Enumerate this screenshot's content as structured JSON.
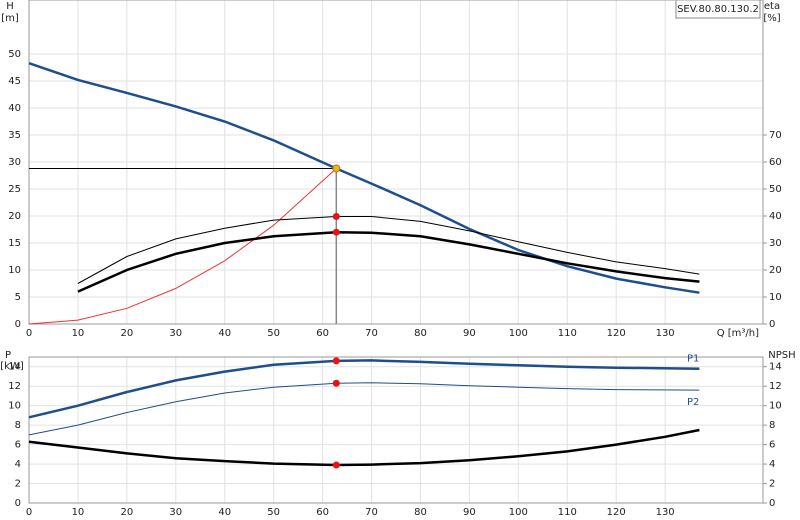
{
  "model": "SEV.80.80.130.2",
  "chart_data": [
    {
      "type": "line",
      "y_label": "H",
      "y_unit": "[m]",
      "y2_label": "eta",
      "y2_unit": "[%]",
      "x_label": "Q [m³/h]",
      "xlim": [
        0,
        150
      ],
      "xticks": [
        0,
        10,
        20,
        30,
        40,
        50,
        60,
        70,
        80,
        90,
        100,
        110,
        120,
        130
      ],
      "ylim": [
        0,
        60
      ],
      "yticks": [
        0,
        5,
        10,
        15,
        20,
        25,
        30,
        35,
        40,
        45,
        50
      ],
      "y2lim": [
        0,
        120
      ],
      "y2ticks": [
        0,
        10,
        20,
        30,
        40,
        50,
        60,
        70
      ],
      "grid": true,
      "series": [
        {
          "color": "#1f4e8c",
          "bold": true,
          "x": [
            0,
            10,
            20,
            30,
            40,
            50,
            62.8,
            70,
            80,
            90,
            100,
            110,
            120,
            130,
            137
          ],
          "values": [
            48.3,
            45.2,
            42.8,
            40.3,
            37.5,
            34,
            28.8,
            26,
            22,
            17.6,
            13.7,
            10.7,
            8.4,
            6.8,
            5.8
          ],
          "marker": {
            "x": 62.8,
            "value": 28.8,
            "color": "#f5b021"
          }
        },
        {
          "color": "#ee3333",
          "bold": false,
          "x": [
            0,
            10,
            20,
            30,
            40,
            50,
            62.8
          ],
          "values": [
            0,
            0.73,
            2.9,
            6.6,
            11.7,
            18.3,
            28.8
          ]
        },
        {
          "color": "#000000",
          "bold": false,
          "axis": "y2",
          "x": [
            10,
            20,
            30,
            40,
            50,
            62.8,
            70,
            80,
            90,
            100,
            110,
            120,
            130,
            137
          ],
          "values": [
            15,
            25,
            31.5,
            35.5,
            38.5,
            39.8,
            39.8,
            38,
            34.5,
            30.5,
            26.5,
            23,
            20.5,
            18.5
          ],
          "marker": {
            "x": 62.8,
            "value": 39.8,
            "color": "#ee1111"
          }
        },
        {
          "color": "#000000",
          "bold": true,
          "axis": "y2",
          "x": [
            10,
            20,
            30,
            40,
            50,
            62.8,
            70,
            80,
            90,
            100,
            110,
            120,
            130,
            137
          ],
          "values": [
            12,
            20,
            26,
            30,
            32.5,
            34,
            33.8,
            32.5,
            29.5,
            26,
            22.5,
            19.5,
            17,
            15.7
          ],
          "marker": {
            "x": 62.8,
            "value": 34,
            "color": "#ee1111"
          }
        }
      ]
    },
    {
      "type": "line",
      "y_label": "P",
      "y_unit": "[kW]",
      "y2_label": "NPSH",
      "xlim": [
        0,
        150
      ],
      "xticks": [
        0,
        10,
        20,
        30,
        40,
        50,
        60,
        70,
        80,
        90,
        100,
        110,
        120,
        130
      ],
      "ylim": [
        0,
        15
      ],
      "yticks": [
        0,
        2,
        4,
        6,
        8,
        10,
        12,
        14
      ],
      "y2lim": [
        0,
        15
      ],
      "y2ticks": [
        0,
        2,
        4,
        6,
        8,
        10,
        12,
        14
      ],
      "grid": true,
      "series": [
        {
          "name": "P1",
          "color": "#1f4e8c",
          "bold": true,
          "x": [
            0,
            10,
            20,
            30,
            40,
            50,
            62.8,
            70,
            80,
            90,
            100,
            110,
            120,
            137
          ],
          "values": [
            8.8,
            10,
            11.4,
            12.6,
            13.5,
            14.2,
            14.6,
            14.65,
            14.5,
            14.3,
            14.15,
            14,
            13.9,
            13.8
          ],
          "marker": {
            "x": 62.8,
            "value": 14.6,
            "color": "#ee1111"
          }
        },
        {
          "name": "P2",
          "color": "#1f4e8c",
          "bold": false,
          "x": [
            0,
            10,
            20,
            30,
            40,
            50,
            62.8,
            70,
            80,
            90,
            100,
            110,
            120,
            137
          ],
          "values": [
            7,
            8,
            9.3,
            10.4,
            11.3,
            11.9,
            12.3,
            12.35,
            12.25,
            12.05,
            11.9,
            11.75,
            11.65,
            11.6
          ],
          "marker": {
            "x": 62.8,
            "value": 12.3,
            "color": "#ee1111"
          }
        },
        {
          "color": "#000000",
          "bold": true,
          "axis": "y2",
          "x": [
            0,
            10,
            20,
            30,
            40,
            50,
            62.8,
            70,
            80,
            90,
            100,
            110,
            120,
            130,
            137
          ],
          "values": [
            6.3,
            5.7,
            5.1,
            4.6,
            4.3,
            4.05,
            3.9,
            3.95,
            4.1,
            4.4,
            4.8,
            5.3,
            6,
            6.8,
            7.5
          ],
          "marker": {
            "x": 62.8,
            "value": 3.9,
            "color": "#ee1111"
          }
        }
      ]
    }
  ]
}
